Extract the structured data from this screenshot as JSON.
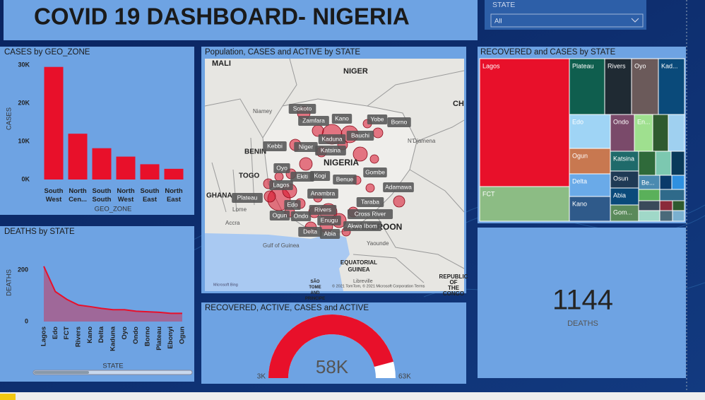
{
  "dashboard": {
    "title": "COVID 19 DASHBOARD- NIGERIA"
  },
  "slicer": {
    "label": "STATE",
    "value": "All"
  },
  "chart_data": [
    {
      "type": "bar",
      "title": "CASES by GEO_ZONE",
      "x_label": "GEO_ZONE",
      "y_label": "CASES",
      "categories": [
        "South West",
        "North Cen...",
        "South South",
        "North West",
        "South East",
        "North East"
      ],
      "values": [
        29500,
        12000,
        8200,
        6000,
        4000,
        2800
      ],
      "color": "#e8102a",
      "ylim": [
        0,
        32000
      ],
      "yticks": [
        {
          "value": 0,
          "label": "0K"
        },
        {
          "value": 10000,
          "label": "10K"
        },
        {
          "value": 20000,
          "label": "20K"
        },
        {
          "value": 30000,
          "label": "30K"
        }
      ]
    },
    {
      "type": "area",
      "title": "DEATHS by STATE",
      "x_label": "STATE",
      "y_label": "DEATHS",
      "categories": [
        "Lagos",
        "Edo",
        "FCT",
        "Rivers",
        "Kano",
        "Delta",
        "Kaduna",
        "Oyo",
        "Ondo",
        "Borno",
        "Plateau",
        "Ebonyi",
        "Ogun"
      ],
      "values": [
        214,
        116,
        86,
        64,
        58,
        51,
        46,
        46,
        40,
        38,
        36,
        32,
        32
      ],
      "color": "#e8102a",
      "ylim": [
        0,
        230
      ],
      "yticks": [
        0,
        200
      ]
    },
    {
      "type": "map",
      "title": "Population, CASES and ACTIVE by STATE",
      "places": [
        "MALI",
        "NIGER",
        "CH",
        "Niamey",
        "BENIN",
        "TOGO",
        "GHANA",
        "NIGERIA",
        "Lome",
        "Accra",
        "Gulf of Guinea",
        "CAMEROON",
        "Yaounde",
        "EQUATORIAL GUINEA",
        "Libreville",
        "SÃO TOME AND PRINCIPE",
        "REPUBLIC OF THE CONGO",
        "N'Djamena"
      ],
      "states": [
        "Sokoto",
        "Kano",
        "Zamfara",
        "Yobe",
        "Borno",
        "Bauchi",
        "Kaduna",
        "Kebbi",
        "Niger",
        "Katsina",
        "Oyo",
        "Ekiti",
        "Kogi",
        "Benue",
        "Gombe",
        "Lagos",
        "Adamawa",
        "Plateau",
        "Anambra",
        "Edo",
        "Taraba",
        "Rivers",
        "Ogun",
        "Ondo",
        "Cross River",
        "Enugu",
        "Akwa Ibom",
        "Delta",
        "Abia"
      ],
      "attribution": [
        "Microsoft Bing",
        "© 2021 TomTom, © 2021 Microsoft Corporation Terms"
      ]
    },
    {
      "type": "treemap",
      "title": "RECOVERED and CASES by STATE",
      "categories": [
        "Lagos",
        "FCT",
        "Plateau",
        "Rivers",
        "Oyo",
        "Kad...",
        "Edo",
        "Ondo",
        "En...",
        null,
        null,
        "Ogun",
        "Delta",
        "Kano",
        "Katsina",
        "Osun",
        "Abia",
        "Gom...",
        null,
        null,
        null,
        "Be...",
        null,
        null,
        null,
        null,
        null,
        null,
        null,
        null,
        null,
        null
      ],
      "values": [
        23000,
        6200,
        4000,
        3000,
        3000,
        2900,
        2800,
        1800,
        1350,
        1150,
        1200,
        2100,
        1850,
        2000,
        1100,
        950,
        950,
        900,
        820,
        750,
        650,
        600,
        340,
        360,
        480,
        560,
        420,
        450,
        250,
        240,
        270,
        255
      ],
      "colors": [
        "#e8102a",
        "#8cbc84",
        "#0f5e4e",
        "#1f2a33",
        "#6b5a5a",
        "#0a4a7a",
        "#9fd4f5",
        "#7a4a6a",
        "#9fe08f",
        "#2f5a2f",
        "#9fd0f0",
        "#c87850",
        "#6aaae8",
        "#2f5a8a",
        "#1f6a6a",
        "#1f3a55",
        "#0a4a7a",
        "#5a8a5a",
        "#2f6a3a",
        "#7cc8b0",
        "#0a3a5a",
        "#4a8ab0",
        "#0a3a6a",
        "#2f90e0",
        "#5ab05a",
        "#2f6a8a",
        "#3a4a5a",
        "#a0d8c8",
        "#8a2a3a",
        "#2f5a2f",
        "#4a6a7a",
        "#7ab0d0"
      ]
    },
    {
      "type": "gauge",
      "title": "RECOVERED, ACTIVE, CASES and ACTIVE",
      "value": 58000,
      "value_label": "58K",
      "min": {
        "value": 3000,
        "label": "3K"
      },
      "max": {
        "value": 63000,
        "label": "63K"
      },
      "color": "#e8102a"
    },
    {
      "type": "card",
      "value": 1144,
      "label": "DEATHS"
    }
  ]
}
